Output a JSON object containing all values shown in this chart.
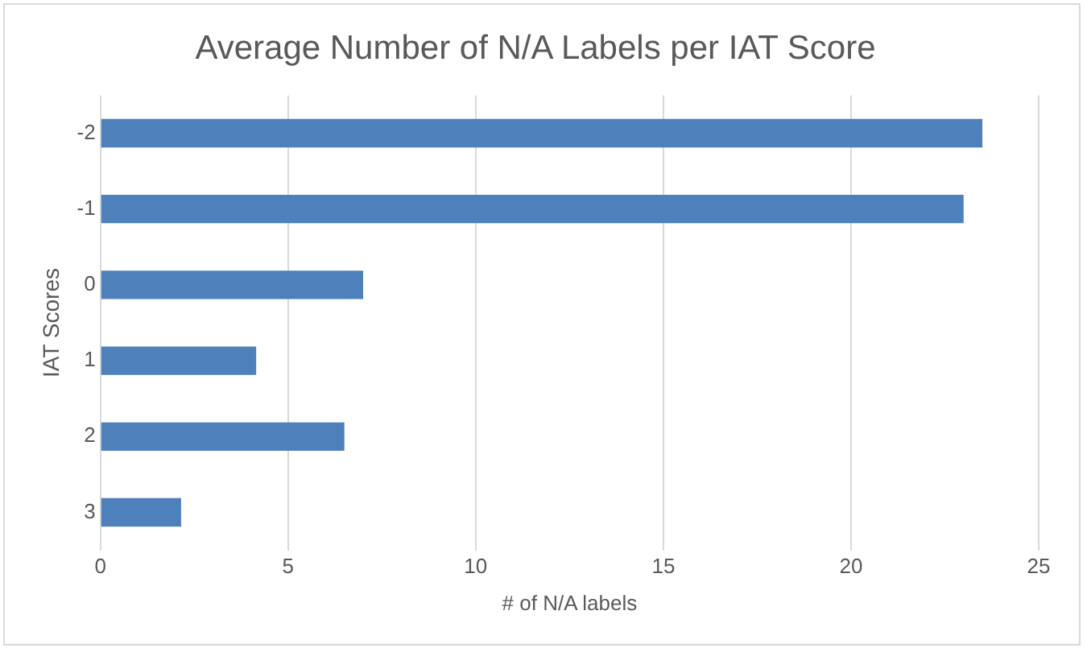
{
  "chart_data": {
    "type": "bar",
    "orientation": "horizontal",
    "title": "Average Number of N/A Labels per IAT Score",
    "xlabel": "# of N/A labels",
    "ylabel": "IAT Scores",
    "categories": [
      "-2",
      "-1",
      "0",
      "1",
      "2",
      "3"
    ],
    "values": [
      23.5,
      23.0,
      7.0,
      4.15,
      6.5,
      2.15
    ],
    "color": "#4e80bc",
    "xlim": [
      0,
      25
    ],
    "xticks": [
      0,
      5,
      10,
      15,
      20,
      25
    ],
    "grid": "x",
    "legend": false
  }
}
